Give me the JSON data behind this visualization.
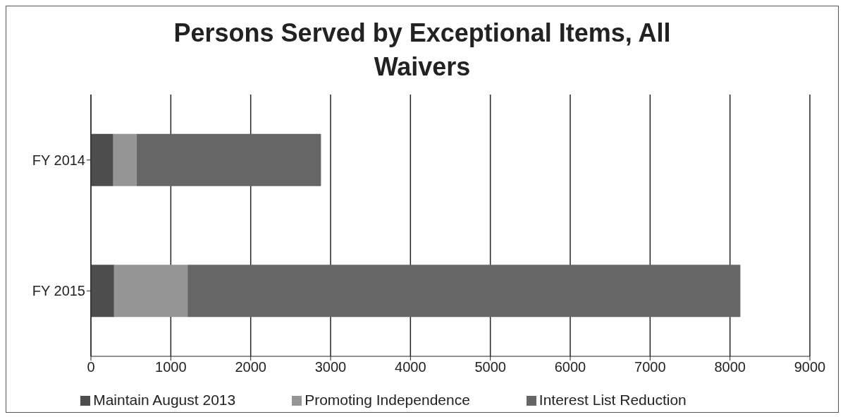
{
  "chart_data": {
    "type": "bar",
    "orientation": "horizontal",
    "stacked": true,
    "title": "Persons Served by Exceptional Items, All Waivers",
    "categories": [
      "FY 2014",
      "FY 2015"
    ],
    "series": [
      {
        "name": "Maintain August 2013",
        "color": "#4d4d4d",
        "values": [
          280,
          290
        ]
      },
      {
        "name": "Promoting Independence",
        "color": "#959595",
        "values": [
          290,
          920
        ]
      },
      {
        "name": "Interest List Reduction",
        "color": "#666666",
        "values": [
          2310,
          6920
        ]
      }
    ],
    "xlim": [
      0,
      9000
    ],
    "xticks": [
      0,
      1000,
      2000,
      3000,
      4000,
      5000,
      6000,
      7000,
      8000,
      9000
    ],
    "grid": "x",
    "legend": "bottom"
  }
}
